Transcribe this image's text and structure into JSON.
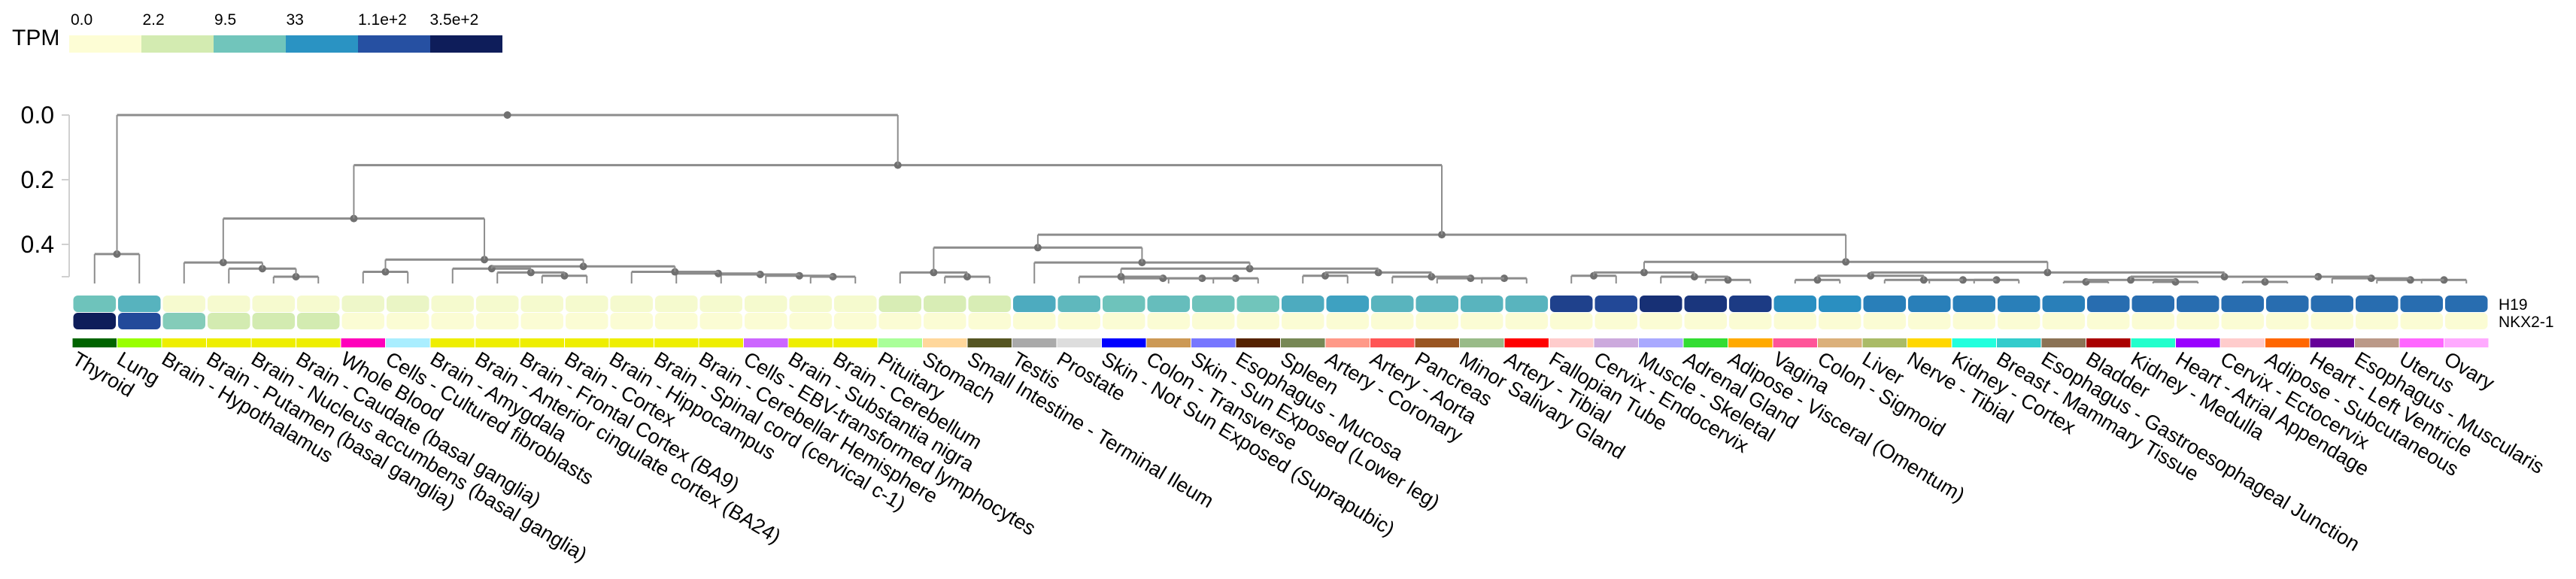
{
  "legend": {
    "title": "TPM",
    "ticks": [
      "0.0",
      "2.2",
      "9.5",
      "33",
      "1.1e+2",
      "3.5e+2"
    ],
    "colors": [
      "#fdfdd5",
      "#d3ebb1",
      "#71c5bb",
      "#2a93c3",
      "#2650a2",
      "#0e1d5a"
    ]
  },
  "chart_data": {
    "type": "heatmap",
    "value_unit": "TPM",
    "color_scale": "log",
    "rows": [
      "H19",
      "NKX2-1"
    ],
    "columns": [
      "Thyroid",
      "Lung",
      "Brain - Hypothalamus",
      "Brain - Putamen (basal ganglia)",
      "Brain - Nucleus accumbens (basal ganglia)",
      "Brain - Caudate (basal ganglia)",
      "Whole Blood",
      "Cells - Cultured fibroblasts",
      "Brain - Amygdala",
      "Brain - Anterior cingulate cortex (BA24)",
      "Brain - Frontal Cortex (BA9)",
      "Brain - Cortex",
      "Brain - Hippocampus",
      "Brain - Spinal cord (cervical c-1)",
      "Brain - Cerebellar Hemisphere",
      "Cells - EBV-transformed lymphocytes",
      "Brain - Substantia nigra",
      "Brain - Cerebellum",
      "Pituitary",
      "Stomach",
      "Small Intestine - Terminal Ileum",
      "Testis",
      "Prostate",
      "Skin - Not Sun Exposed (Suprapubic)",
      "Colon - Transverse",
      "Skin - Sun Exposed (Lower leg)",
      "Esophagus - Mucosa",
      "Spleen",
      "Artery - Coronary",
      "Artery - Aorta",
      "Pancreas",
      "Minor Salivary Gland",
      "Artery - Tibial",
      "Fallopian Tube",
      "Cervix - Endocervix",
      "Muscle - Skeletal",
      "Adrenal Gland",
      "Adipose - Visceral (Omentum)",
      "Vagina",
      "Colon - Sigmoid",
      "Liver",
      "Nerve - Tibial",
      "Kidney - Cortex",
      "Breast - Mammary Tissue",
      "Esophagus - Gastroesophageal Junction",
      "Bladder",
      "Kidney - Medulla",
      "Heart - Atrial Appendage",
      "Cervix - Ectocervix",
      "Adipose - Subcutaneous",
      "Heart - Left Ventricle",
      "Esophagus - Muscularis",
      "Uterus",
      "Ovary"
    ],
    "tissue_colors": [
      "#006400",
      "#99ff00",
      "#eeee00",
      "#eeee00",
      "#eeee00",
      "#eeee00",
      "#ff00bb",
      "#aaeeff",
      "#eeee00",
      "#eeee00",
      "#eeee00",
      "#eeee00",
      "#eeee00",
      "#eeee00",
      "#eeee00",
      "#cc66ff",
      "#eeee00",
      "#eeee00",
      "#aaff99",
      "#ffd79b",
      "#555522",
      "#aaaaaa",
      "#dddddd",
      "#0000ff",
      "#cc9955",
      "#7777ff",
      "#552200",
      "#778855",
      "#ff9988",
      "#ff5555",
      "#995522",
      "#99bb88",
      "#ff0000",
      "#ffcccc",
      "#ccaadd",
      "#aaaaff",
      "#33dd33",
      "#ffaa00",
      "#ff5599",
      "#dbb07a",
      "#aabb66",
      "#ffd700",
      "#22ffdd",
      "#33cccc",
      "#8b7355",
      "#aa0000",
      "#22ffcc",
      "#9900ff",
      "#ffcccc",
      "#ff6600",
      "#660099",
      "#bb9988",
      "#ff66ff",
      "#ffaaff"
    ],
    "values": [
      [
        10,
        15,
        0.2,
        0.2,
        0.2,
        0.2,
        0.5,
        0.7,
        0.25,
        0.25,
        0.25,
        0.25,
        0.25,
        0.25,
        0.25,
        0.25,
        0.25,
        0.25,
        1.8,
        1.8,
        1.8,
        18,
        13,
        10,
        11.5,
        10,
        9.5,
        18,
        23,
        14.5,
        14.5,
        14.5,
        14.5,
        154,
        130,
        224,
        198,
        175,
        35,
        35,
        47,
        47,
        47,
        47,
        47,
        64,
        64,
        64,
        64,
        64,
        64,
        64,
        64,
        64
      ],
      [
        350,
        123,
        7.3,
        2.2,
        2.2,
        2.2,
        0.05,
        0.05,
        0.05,
        0.05,
        0.05,
        0.05,
        0.05,
        0.05,
        0.05,
        0.05,
        0.05,
        0.05,
        0.05,
        0.05,
        0.05,
        0.05,
        0.05,
        0.05,
        0.05,
        0.05,
        0.05,
        0.05,
        0.05,
        0.05,
        0.05,
        0.05,
        0.05,
        0.05,
        0.05,
        0.05,
        0.05,
        0.05,
        0.05,
        0.05,
        0.05,
        0.05,
        0.05,
        0.05,
        0.05,
        0.05,
        0.05,
        0.05,
        0.05,
        0.05,
        0.05,
        0.05,
        0.05,
        0.05
      ]
    ],
    "dendrogram_axis": {
      "ticks": [
        0,
        0.2,
        0.4,
        0.5
      ],
      "tick_labels": [
        "0.0",
        "0.2",
        "0.4",
        ""
      ]
    },
    "dendrogram": {
      "h": 0.0,
      "c": [
        {
          "h": 0.43,
          "c": [
            0,
            1
          ]
        },
        {
          "h": 0.155,
          "c": [
            {
              "h": 0.32,
              "c": [
                {
                  "h": 0.456,
                  "c": [
                    2,
                    {
                      "h": 0.475,
                      "c": [
                        3,
                        {
                          "h": 0.5,
                          "c": [
                            4,
                            5
                          ]
                        }
                      ]
                    }
                  ]
                },
                {
                  "h": 0.447,
                  "c": [
                    {
                      "h": 0.485,
                      "c": [
                        6,
                        7
                      ]
                    },
                    {
                      "h": 0.468,
                      "c": [
                        {
                          "h": 0.475,
                          "c": [
                            8,
                            {
                              "h": 0.487,
                              "c": [
                                9,
                                {
                                  "h": 0.497,
                                  "c": [
                                    10,
                                    11
                                  ]
                                }
                              ]
                            }
                          ]
                        },
                        {
                          "h": 0.485,
                          "c": [
                            12,
                            {
                              "h": 0.49,
                              "c": [
                                13,
                                {
                                  "h": 0.493,
                                  "c": [
                                    14,
                                    {
                                      "h": 0.497,
                                      "c": [
                                        15,
                                        {
                                          "h": 0.5,
                                          "c": [
                                            16,
                                            17
                                          ]
                                        }
                                      ]
                                    }
                                  ]
                                }
                              ]
                            }
                          ]
                        }
                      ]
                    }
                  ]
                }
              ]
            },
            {
              "h": 0.37,
              "c": [
                {
                  "h": 0.41,
                  "c": [
                    {
                      "h": 0.487,
                      "c": [
                        18,
                        {
                          "h": 0.5,
                          "c": [
                            19,
                            20
                          ]
                        }
                      ]
                    },
                    {
                      "h": 0.456,
                      "c": [
                        21,
                        {
                          "h": 0.475,
                          "c": [
                            {
                              "h": 0.5,
                              "c": [
                                22,
                                {
                                  "h": 0.505,
                                  "c": [
                                    23,
                                    {
                                      "h": 0.505,
                                      "c": [
                                        24,
                                        {
                                          "h": 0.505,
                                          "c": [
                                            25,
                                            26
                                          ]
                                        }
                                      ]
                                    }
                                  ]
                                }
                              ]
                            },
                            {
                              "h": 0.487,
                              "c": [
                                {
                                  "h": 0.497,
                                  "c": [
                                    27,
                                    28
                                  ]
                                },
                                {
                                  "h": 0.5,
                                  "c": [
                                    29,
                                    {
                                      "h": 0.505,
                                      "c": [
                                        30,
                                        {
                                          "h": 0.505,
                                          "c": [
                                            31,
                                            32
                                          ]
                                        }
                                      ]
                                    }
                                  ]
                                }
                              ]
                            }
                          ]
                        }
                      ]
                    }
                  ]
                },
                {
                  "h": 0.454,
                  "c": [
                    {
                      "h": 0.487,
                      "c": [
                        {
                          "h": 0.497,
                          "c": [
                            33,
                            34
                          ]
                        },
                        {
                          "h": 0.5,
                          "c": [
                            35,
                            {
                              "h": 0.51,
                              "c": [
                                36,
                                37
                              ]
                            }
                          ]
                        }
                      ]
                    },
                    {
                      "h": 0.487,
                      "c": [
                        {
                          "h": 0.497,
                          "c": [
                            {
                              "h": 0.51,
                              "c": [
                                38,
                                39
                              ]
                            },
                            {
                              "h": 0.51,
                              "c": [
                                40,
                                {
                                  "h": 0.51,
                                  "c": [
                                    41,
                                    {
                                      "h": 0.51,
                                      "c": [
                                        42,
                                        43
                                      ]
                                    }
                                  ]
                                }
                              ]
                            }
                          ]
                        },
                        {
                          "h": 0.5,
                          "c": [
                            {
                              "h": 0.51,
                              "c": [
                                {
                                  "h": 0.516,
                                  "c": [
                                    44,
                                    45
                                  ]
                                },
                                {
                                  "h": 0.516,
                                  "c": [
                                    46,
                                    47
                                  ]
                                }
                              ]
                            },
                            {
                              "h": 0.5,
                              "c": [
                                {
                                  "h": 0.516,
                                  "c": [
                                    48,
                                    49
                                  ]
                                },
                                {
                                  "h": 0.505,
                                  "c": [
                                    50,
                                    {
                                      "h": 0.51,
                                      "c": [
                                        51,
                                        {
                                          "h": 0.51,
                                          "c": [
                                            52,
                                            53
                                          ]
                                        }
                                      ]
                                    }
                                  ]
                                }
                              ]
                            }
                          ]
                        }
                      ]
                    }
                  ]
                }
              ]
            }
          ]
        }
      ]
    }
  }
}
